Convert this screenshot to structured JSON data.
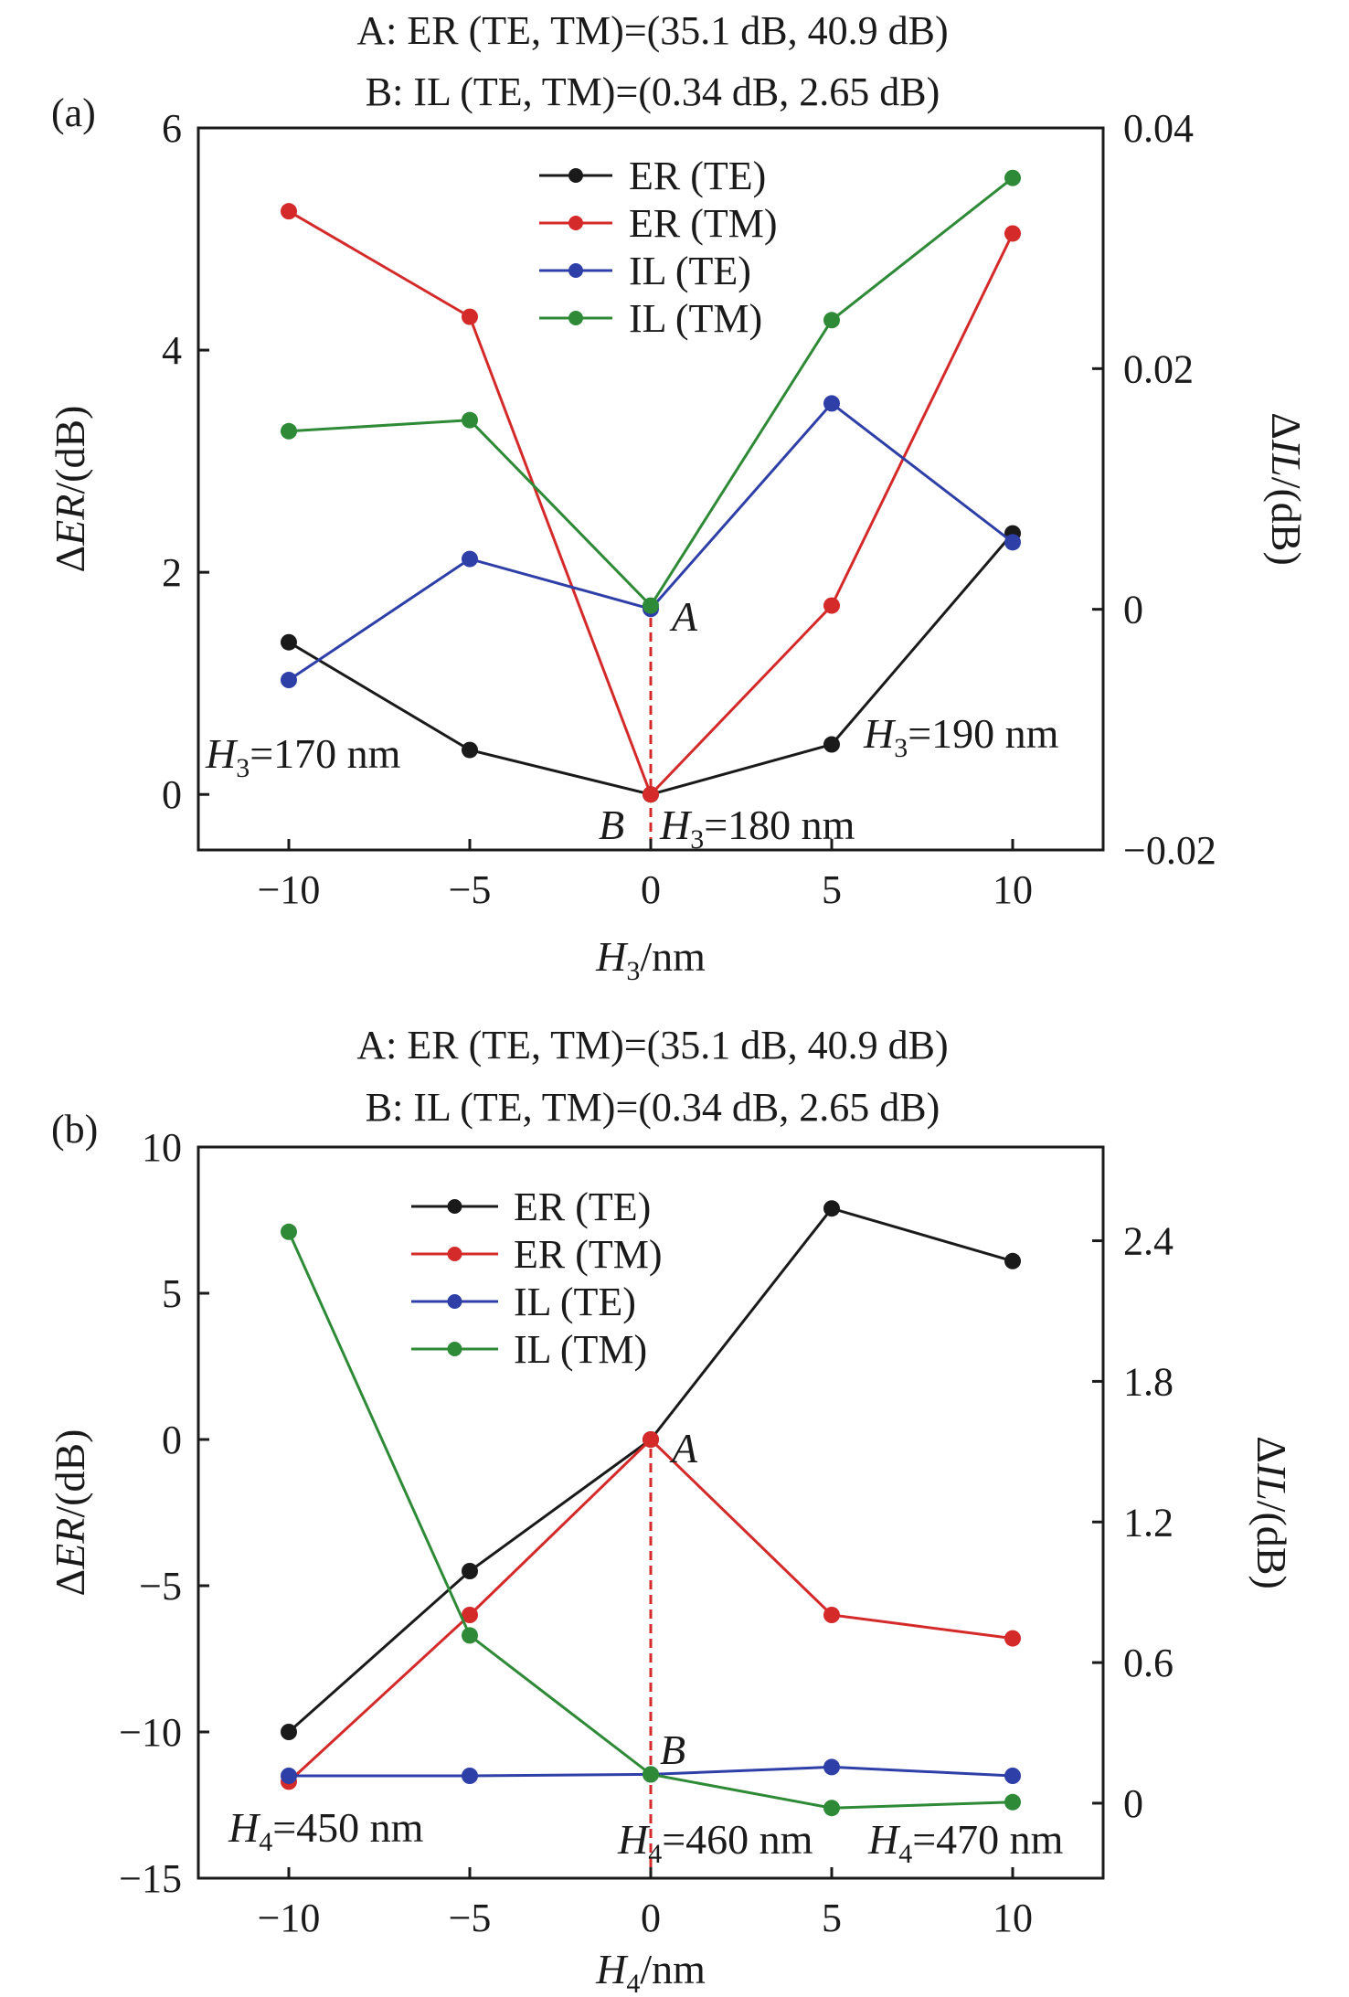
{
  "chart_data": [
    {
      "panel_label": "(a)",
      "type": "line",
      "title_lines": [
        "A: ER (TE, TM)=(35.1 dB, 40.9 dB)",
        "B: IL (TE, TM)=(0.34 dB, 2.65 dB)"
      ],
      "x": [
        -10,
        -5,
        0,
        5,
        10
      ],
      "xlim": [
        -12.5,
        12.5
      ],
      "xticks": [
        -10,
        -5,
        0,
        5,
        10
      ],
      "xticklabels": [
        "−10",
        "−5",
        "0",
        "5",
        "10"
      ],
      "xlabel": {
        "symbol": "H",
        "sub": "3",
        "unit": "/nm"
      },
      "y_left": {
        "lim": [
          -0.5,
          6
        ],
        "ticks": [
          0,
          2,
          4,
          6
        ],
        "ticklabels": [
          "0",
          "2",
          "4",
          "6"
        ],
        "label": {
          "pre": "Δ",
          "var": "ER",
          "unit": "/(dB)"
        }
      },
      "y_right": {
        "lim": [
          -0.02,
          0.04
        ],
        "ticks": [
          -0.02,
          0,
          0.02,
          0.04
        ],
        "ticklabels": [
          "−0.02",
          "0",
          "0.02",
          "0.04"
        ],
        "label": {
          "pre": "Δ",
          "var": "IL",
          "unit": "/(dB)"
        }
      },
      "series": [
        {
          "name": "ER (TE)",
          "color": "#1a1a1a",
          "axis": "left",
          "values": [
            1.37,
            0.4,
            0.0,
            0.45,
            2.35
          ]
        },
        {
          "name": "ER (TM)",
          "color": "#d42a2a",
          "axis": "left",
          "values": [
            5.25,
            4.3,
            0.0,
            1.7,
            5.05
          ]
        },
        {
          "name": "IL (TE)",
          "color": "#2f3fa8",
          "axis": "left",
          "values": [
            1.03,
            2.12,
            1.67,
            3.52,
            2.27
          ]
        },
        {
          "name": "IL (TM)",
          "color": "#2e8a36",
          "axis": "left",
          "values": [
            3.27,
            3.37,
            1.7,
            4.27,
            5.55
          ]
        }
      ],
      "legend_position": "top-center",
      "marker_line": {
        "x": 0,
        "color": "#d42a2a",
        "style": "dashed"
      },
      "annotations": [
        {
          "kind": "point",
          "text": "A"
        },
        {
          "kind": "point",
          "text": "B"
        },
        {
          "kind": "param",
          "symbol": "H",
          "sub": "3",
          "text": "=170 nm"
        },
        {
          "kind": "param",
          "symbol": "H",
          "sub": "3",
          "text": "=180 nm"
        },
        {
          "kind": "param",
          "symbol": "H",
          "sub": "3",
          "text": "=190 nm"
        }
      ]
    },
    {
      "panel_label": "(b)",
      "type": "line",
      "title_lines": [
        "A: ER (TE, TM)=(35.1 dB, 40.9 dB)",
        "B: IL (TE, TM)=(0.34 dB, 2.65 dB)"
      ],
      "x": [
        -10,
        -5,
        0,
        5,
        10
      ],
      "xlim": [
        -12.5,
        12.5
      ],
      "xticks": [
        -10,
        -5,
        0,
        5,
        10
      ],
      "xticklabels": [
        "−10",
        "−5",
        "0",
        "5",
        "10"
      ],
      "xlabel": {
        "symbol": "H",
        "sub": "4",
        "unit": "/nm"
      },
      "y_left": {
        "lim": [
          -15,
          10
        ],
        "ticks": [
          -15,
          -10,
          -5,
          0,
          5,
          10
        ],
        "ticklabels": [
          "−15",
          "−10",
          "−5",
          "0",
          "5",
          "10"
        ],
        "label": {
          "pre": "Δ",
          "var": "ER",
          "unit": "/(dB)"
        }
      },
      "y_right": {
        "lim": [
          -0.32,
          2.8
        ],
        "ticks": [
          0,
          0.6,
          1.2,
          1.8,
          2.4
        ],
        "ticklabels": [
          "0",
          "0.6",
          "1.2",
          "1.8",
          "2.4"
        ],
        "label": {
          "pre": "Δ",
          "var": "IL",
          "unit": "/(dB)"
        }
      },
      "series": [
        {
          "name": "ER (TE)",
          "color": "#1a1a1a",
          "axis": "left",
          "values": [
            -10.0,
            -4.5,
            0.0,
            7.9,
            6.1
          ]
        },
        {
          "name": "ER (TM)",
          "color": "#d42a2a",
          "axis": "left",
          "values": [
            -11.7,
            -6.0,
            0.0,
            -6.0,
            -6.8
          ]
        },
        {
          "name": "IL (TE)",
          "color": "#2f3fa8",
          "axis": "left",
          "values": [
            -11.5,
            -11.5,
            -11.45,
            -11.2,
            -11.5
          ]
        },
        {
          "name": "IL (TM)",
          "color": "#2e8a36",
          "axis": "left",
          "values": [
            7.1,
            -6.7,
            -11.45,
            -12.6,
            -12.4
          ]
        }
      ],
      "legend_position": "top-center",
      "marker_line": {
        "x": 0,
        "color": "#d42a2a",
        "style": "dashed"
      },
      "annotations": [
        {
          "kind": "point",
          "text": "A"
        },
        {
          "kind": "point",
          "text": "B"
        },
        {
          "kind": "param",
          "symbol": "H",
          "sub": "4",
          "text": "=450 nm"
        },
        {
          "kind": "param",
          "symbol": "H",
          "sub": "4",
          "text": "=460 nm"
        },
        {
          "kind": "param",
          "symbol": "H",
          "sub": "4",
          "text": "=470 nm"
        }
      ]
    }
  ]
}
